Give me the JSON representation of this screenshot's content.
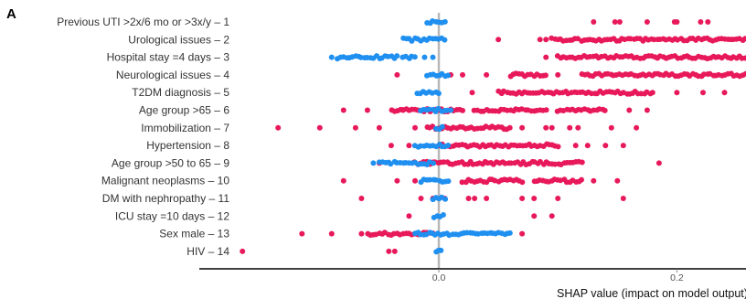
{
  "panel_label": "A",
  "colors": {
    "high": "#e8195a",
    "low": "#1f8ff0",
    "zero_line": "#b8b8b8",
    "axis": "#000000"
  },
  "chart_data": {
    "type": "scatter",
    "subtype": "shap-beeswarm",
    "title": "",
    "xlabel": "SHAP value (impact on model output)",
    "ylabel": "",
    "xlim": [
      -0.2,
      0.26
    ],
    "x_ticks": [
      0.0,
      0.2
    ],
    "x_tick_labels": [
      "0.0",
      "0.2"
    ],
    "grid": false,
    "features": [
      {
        "label": "Previous UTI >2x/6 mo or >3x/y – 1",
        "low": {
          "dense": [
            [
              -0.01,
              0.005
            ]
          ]
        },
        "high": {
          "dense": [],
          "points": [
            0.13,
            0.148,
            0.152,
            0.175,
            0.198,
            0.2,
            0.22,
            0.226
          ]
        }
      },
      {
        "label": "Urological issues – 2",
        "low": {
          "dense": [
            [
              -0.03,
              0.005
            ]
          ]
        },
        "high": {
          "dense": [
            [
              0.095,
              0.26
            ]
          ],
          "points": [
            0.05,
            0.085,
            0.09
          ]
        }
      },
      {
        "label": "Hospital stay =4 days – 3",
        "low": {
          "dense": [
            [
              -0.085,
              -0.035
            ],
            [
              -0.03,
              -0.02
            ]
          ],
          "points": [
            -0.09,
            -0.012,
            -0.005
          ]
        },
        "high": {
          "dense": [
            [
              0.1,
              0.26
            ]
          ],
          "points": [
            0.09
          ]
        }
      },
      {
        "label": "Neurological issues – 4",
        "low": {
          "dense": [
            [
              -0.01,
              0.008
            ]
          ]
        },
        "high": {
          "dense": [
            [
              0.06,
              0.09
            ],
            [
              0.12,
              0.26
            ]
          ],
          "points": [
            -0.035,
            0.01,
            0.02,
            0.04,
            0.1
          ]
        }
      },
      {
        "label": "T2DM diagnosis – 5",
        "low": {
          "dense": [
            [
              -0.018,
              0.0
            ]
          ]
        },
        "high": {
          "dense": [
            [
              0.05,
              0.18
            ]
          ],
          "points": [
            0.028,
            0.2,
            0.222,
            0.24
          ]
        }
      },
      {
        "label": "Age group >65 – 6",
        "low": {
          "dense": [
            [
              -0.015,
              0.01
            ]
          ]
        },
        "high": {
          "dense": [
            [
              -0.04,
              0.02
            ],
            [
              0.03,
              0.09
            ],
            [
              0.1,
              0.14
            ]
          ],
          "points": [
            -0.08,
            -0.06,
            -0.03,
            0.16,
            0.175
          ]
        }
      },
      {
        "label": "Immobilization – 7",
        "low": {
          "dense": [
            [
              -0.002,
              0.003
            ]
          ]
        },
        "high": {
          "dense": [
            [
              -0.01,
              0.06
            ]
          ],
          "points": [
            -0.135,
            -0.1,
            -0.07,
            -0.05,
            -0.02,
            0.07,
            0.09,
            0.095,
            0.11,
            0.117,
            0.145,
            0.166
          ]
        }
      },
      {
        "label": "Hypertension – 8",
        "low": {
          "dense": [
            [
              -0.02,
              0.008
            ]
          ]
        },
        "high": {
          "dense": [
            [
              0.0,
              0.1
            ]
          ],
          "points": [
            -0.04,
            -0.025,
            0.115,
            0.125,
            0.14,
            0.155
          ]
        }
      },
      {
        "label": "Age group >50 to 65 – 9",
        "low": {
          "dense": [
            [
              -0.05,
              -0.005
            ]
          ],
          "points": [
            -0.055
          ]
        },
        "high": {
          "dense": [
            [
              -0.02,
              0.12
            ]
          ],
          "points": [
            -0.05,
            0.185
          ]
        }
      },
      {
        "label": "Malignant neoplasms – 10",
        "low": {
          "dense": [
            [
              -0.015,
              0.008
            ]
          ]
        },
        "high": {
          "dense": [
            [
              0.02,
              0.07
            ],
            [
              0.08,
              0.12
            ]
          ],
          "points": [
            -0.08,
            -0.035,
            -0.02,
            0.13,
            0.15
          ]
        }
      },
      {
        "label": "DM with nephropathy – 11",
        "low": {
          "dense": [
            [
              -0.005,
              0.005
            ]
          ]
        },
        "high": {
          "dense": [],
          "points": [
            -0.065,
            -0.015,
            -0.005,
            0.005,
            0.025,
            0.03,
            0.04,
            0.07,
            0.08,
            0.1,
            0.155
          ]
        }
      },
      {
        "label": "ICU stay =10 days – 12",
        "low": {
          "dense": [
            [
              -0.004,
              0.004
            ]
          ]
        },
        "high": {
          "dense": [],
          "points": [
            -0.025,
            0.08,
            0.095
          ]
        }
      },
      {
        "label": "Sex male – 13",
        "low": {
          "dense": [
            [
              -0.02,
              0.06
            ]
          ]
        },
        "high": {
          "dense": [
            [
              -0.06,
              -0.005
            ]
          ],
          "points": [
            -0.115,
            -0.09,
            -0.065,
            0.07
          ]
        }
      },
      {
        "label": "HIV – 14",
        "low": {
          "dense": [
            [
              -0.002,
              0.002
            ]
          ]
        },
        "high": {
          "dense": [],
          "points": [
            -0.165,
            -0.042,
            -0.037
          ]
        }
      }
    ]
  }
}
